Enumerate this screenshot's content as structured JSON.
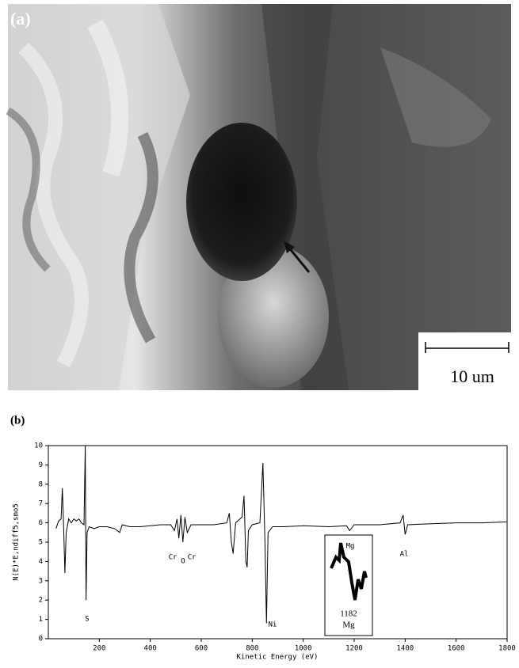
{
  "panel_a": {
    "label": "(a)",
    "scale_bar": "10 um"
  },
  "chart_data": {
    "type": "line",
    "panel_label": "(b)",
    "x_label": "Kinetic Energy (eV)",
    "y_label": "N(E)*E,ndiff5,smo5",
    "xlim": [
      0,
      1800
    ],
    "xticks": [
      200,
      400,
      600,
      800,
      1000,
      1200,
      1400,
      1600,
      1800
    ],
    "ylim": [
      0,
      10
    ],
    "yticks": [
      0,
      1,
      2,
      3,
      4,
      5,
      6,
      7,
      8,
      9,
      10
    ],
    "x": [
      30,
      40,
      50,
      55,
      60,
      65,
      70,
      80,
      90,
      100,
      110,
      120,
      130,
      140,
      145,
      148,
      152,
      160,
      180,
      200,
      230,
      260,
      280,
      290,
      320,
      360,
      400,
      440,
      480,
      495,
      505,
      512,
      520,
      528,
      536,
      545,
      560,
      600,
      650,
      700,
      710,
      718,
      725,
      735,
      760,
      768,
      775,
      780,
      785,
      800,
      830,
      842,
      850,
      856,
      862,
      880,
      920,
      1000,
      1100,
      1170,
      1182,
      1200,
      1300,
      1380,
      1392,
      1400,
      1410,
      1500,
      1600,
      1700,
      1800
    ],
    "series": [
      {
        "color": "#000000",
        "values": [
          5.7,
          6.1,
          6.2,
          7.8,
          5.8,
          3.4,
          5.5,
          6.2,
          6.0,
          6.2,
          6.1,
          6.2,
          6.0,
          5.9,
          10.0,
          2.0,
          5.5,
          5.8,
          5.7,
          5.8,
          5.8,
          5.7,
          5.5,
          5.9,
          5.8,
          5.8,
          5.85,
          5.9,
          5.9,
          5.6,
          6.2,
          5.2,
          6.4,
          5.0,
          6.3,
          5.5,
          5.9,
          5.9,
          5.9,
          6.0,
          6.5,
          5.0,
          4.4,
          6.0,
          6.3,
          7.4,
          4.0,
          3.7,
          5.6,
          5.9,
          6.0,
          9.1,
          5.0,
          0.8,
          5.5,
          5.8,
          5.8,
          5.85,
          5.8,
          5.85,
          5.6,
          5.9,
          5.9,
          6.0,
          6.4,
          5.4,
          5.9,
          5.95,
          6.0,
          6.0,
          6.05
        ]
      }
    ],
    "annotations": [
      "S",
      "Cr",
      "O",
      "Cr",
      "Ni",
      "Mg",
      "Al"
    ],
    "inset": {
      "energy": "1182",
      "element": "Mg"
    }
  }
}
